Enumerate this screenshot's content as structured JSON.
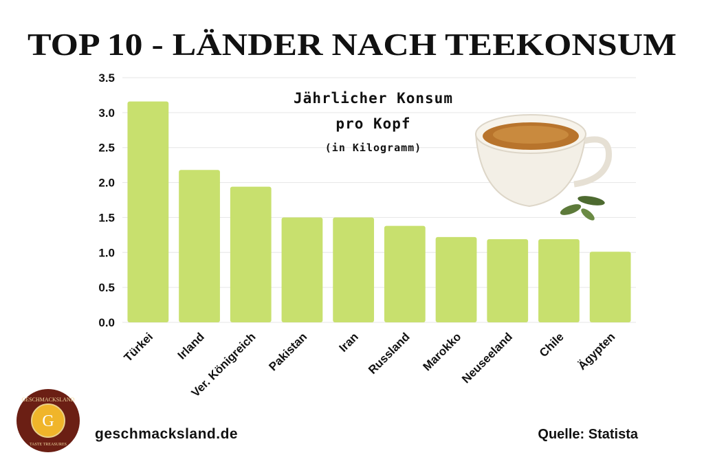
{
  "chart_data": {
    "type": "bar",
    "title": "TOP 10 - LÄNDER NACH TEEKONSUM",
    "subtitle": [
      "Jährlicher Konsum",
      "pro Kopf",
      "(in Kilogramm)"
    ],
    "categories": [
      "Türkei",
      "Irland",
      "Ver. Königreich",
      "Pakistan",
      "Iran",
      "Russland",
      "Marokko",
      "Neuseeland",
      "Chile",
      "Ägypten"
    ],
    "values": [
      3.16,
      2.18,
      1.94,
      1.5,
      1.5,
      1.38,
      1.22,
      1.19,
      1.19,
      1.01
    ],
    "color": "#c8e06e",
    "ylim": [
      0,
      3.5
    ],
    "yticks": [
      {
        "value": 0,
        "label": "0.0"
      },
      0.5,
      {
        "value": 1,
        "label": "1.0"
      },
      1.5,
      {
        "value": 2,
        "label": "2.0"
      },
      2.5,
      {
        "value": 3,
        "label": "3.0"
      },
      3.5
    ],
    "grid": true
  },
  "footer": {
    "website": "geschmacksland.de",
    "source": "Quelle: Statista"
  },
  "logo": {
    "name": "GESCHMACKSLAND",
    "letter": "G",
    "tagline": "TASTE TREASURES"
  }
}
